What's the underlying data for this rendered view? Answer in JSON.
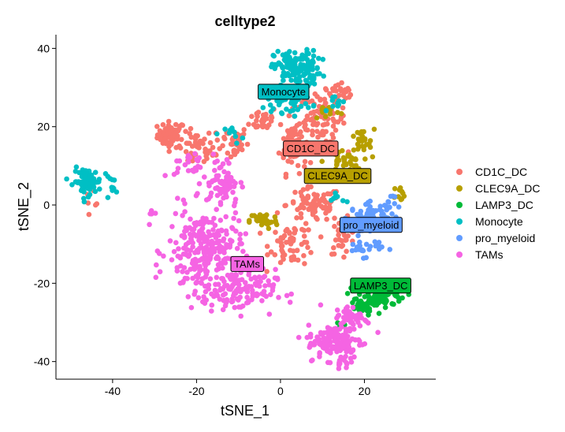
{
  "chart_data": {
    "type": "scatter",
    "title": "celltype2",
    "xlabel": "tSNE_1",
    "ylabel": "tSNE_2",
    "xlim": [
      -53.5,
      37
    ],
    "ylim": [
      -44.5,
      43.5
    ],
    "xticks": [
      -40,
      -20,
      0,
      20
    ],
    "yticks": [
      -40,
      -20,
      0,
      20,
      40
    ],
    "grid": false,
    "legend_position": "right",
    "series": [
      {
        "name": "CD1C_DC",
        "color": "#F8766D",
        "regions": [
          {
            "cx": -26,
            "cy": 18,
            "rx": 3,
            "ry": 3,
            "n": 60
          },
          {
            "cx": -20,
            "cy": 14,
            "rx": 4,
            "ry": 4,
            "n": 40
          },
          {
            "cx": -12,
            "cy": 16,
            "rx": 4,
            "ry": 4,
            "n": 40
          },
          {
            "cx": -4,
            "cy": 22,
            "rx": 3,
            "ry": 3,
            "n": 30
          },
          {
            "cx": 3,
            "cy": 16,
            "rx": 3,
            "ry": 7,
            "n": 70
          },
          {
            "cx": 10,
            "cy": 22,
            "rx": 5,
            "ry": 6,
            "n": 80
          },
          {
            "cx": 14,
            "cy": 28,
            "rx": 4,
            "ry": 3,
            "n": 30
          },
          {
            "cx": 8,
            "cy": 0,
            "rx": 6,
            "ry": 4,
            "n": 80
          },
          {
            "cx": 3,
            "cy": -10,
            "rx": 5,
            "ry": 5,
            "n": 60
          },
          {
            "cx": 15,
            "cy": -8,
            "rx": 3,
            "ry": 4,
            "n": 30
          },
          {
            "cx": -45,
            "cy": 2,
            "rx": 2,
            "ry": 2,
            "n": 6
          }
        ]
      },
      {
        "name": "CLEC9A_DC",
        "color": "#B79F00",
        "regions": [
          {
            "cx": 15,
            "cy": 11,
            "rx": 4,
            "ry": 3,
            "n": 40
          },
          {
            "cx": 19,
            "cy": 16,
            "rx": 3,
            "ry": 3,
            "n": 25
          },
          {
            "cx": -4,
            "cy": -4,
            "rx": 3,
            "ry": 2,
            "n": 40
          },
          {
            "cx": 29,
            "cy": 3,
            "rx": 2,
            "ry": 2,
            "n": 10
          },
          {
            "cx": 11,
            "cy": 24,
            "rx": 3,
            "ry": 2,
            "n": 12
          }
        ]
      },
      {
        "name": "LAMP3_DC",
        "color": "#00BA38",
        "regions": [
          {
            "cx": 24,
            "cy": -23,
            "rx": 5,
            "ry": 3,
            "n": 90
          },
          {
            "cx": 19,
            "cy": -26,
            "rx": 3,
            "ry": 2,
            "n": 25
          },
          {
            "cx": 14,
            "cy": -31,
            "rx": 1.5,
            "ry": 1.5,
            "n": 5
          }
        ]
      },
      {
        "name": "Monocyte",
        "color": "#00BFC4",
        "regions": [
          {
            "cx": 4,
            "cy": 35,
            "rx": 5,
            "ry": 4,
            "n": 140
          },
          {
            "cx": 2,
            "cy": 27,
            "rx": 5,
            "ry": 3,
            "n": 60
          },
          {
            "cx": -46,
            "cy": 6,
            "rx": 3,
            "ry": 3,
            "n": 80
          },
          {
            "cx": -40,
            "cy": 5,
            "rx": 1.5,
            "ry": 2,
            "n": 10
          },
          {
            "cx": 14,
            "cy": 26,
            "rx": 2,
            "ry": 2,
            "n": 10
          },
          {
            "cx": -11,
            "cy": 18,
            "rx": 2,
            "ry": 2,
            "n": 10
          },
          {
            "cx": 13,
            "cy": 2,
            "rx": 2,
            "ry": 2,
            "n": 8
          }
        ]
      },
      {
        "name": "pro_myeloid",
        "color": "#619CFF",
        "regions": [
          {
            "cx": 22,
            "cy": -3,
            "rx": 5,
            "ry": 3,
            "n": 60
          },
          {
            "cx": 20,
            "cy": -11,
            "rx": 4,
            "ry": 2,
            "n": 25
          },
          {
            "cx": 26,
            "cy": 1,
            "rx": 2,
            "ry": 2,
            "n": 10
          }
        ]
      },
      {
        "name": "TAMs",
        "color": "#F564E3",
        "regions": [
          {
            "cx": -18,
            "cy": -12,
            "rx": 8,
            "ry": 10,
            "n": 260
          },
          {
            "cx": -10,
            "cy": -22,
            "rx": 8,
            "ry": 5,
            "n": 120
          },
          {
            "cx": -14,
            "cy": 6,
            "rx": 4,
            "ry": 6,
            "n": 70
          },
          {
            "cx": -22,
            "cy": 10,
            "rx": 3,
            "ry": 3,
            "n": 20
          },
          {
            "cx": 13,
            "cy": -35,
            "rx": 6,
            "ry": 4,
            "n": 130
          },
          {
            "cx": 17,
            "cy": -29,
            "rx": 4,
            "ry": 3,
            "n": 50
          },
          {
            "cx": 15,
            "cy": -40,
            "rx": 2,
            "ry": 1.5,
            "n": 12
          },
          {
            "cx": -30,
            "cy": -2,
            "rx": 1.5,
            "ry": 1.5,
            "n": 4
          }
        ]
      }
    ],
    "cluster_labels": [
      {
        "text": "Monocyte",
        "x": -5.5,
        "y": 27,
        "fill": "#00BFC4"
      },
      {
        "text": "CD1C_DC",
        "x": 0.5,
        "y": 12.5,
        "fill": "#F8766D"
      },
      {
        "text": "CLEC9A_DC",
        "x": 5.5,
        "y": 5.5,
        "fill": "#B79F00"
      },
      {
        "text": "pro_myeloid",
        "x": 14,
        "y": -7,
        "fill": "#619CFF"
      },
      {
        "text": "TAMs",
        "x": -12,
        "y": -17,
        "fill": "#F564E3"
      },
      {
        "text": "LAMP3_DC",
        "x": 16.5,
        "y": -22.5,
        "fill": "#00BA38"
      }
    ]
  }
}
